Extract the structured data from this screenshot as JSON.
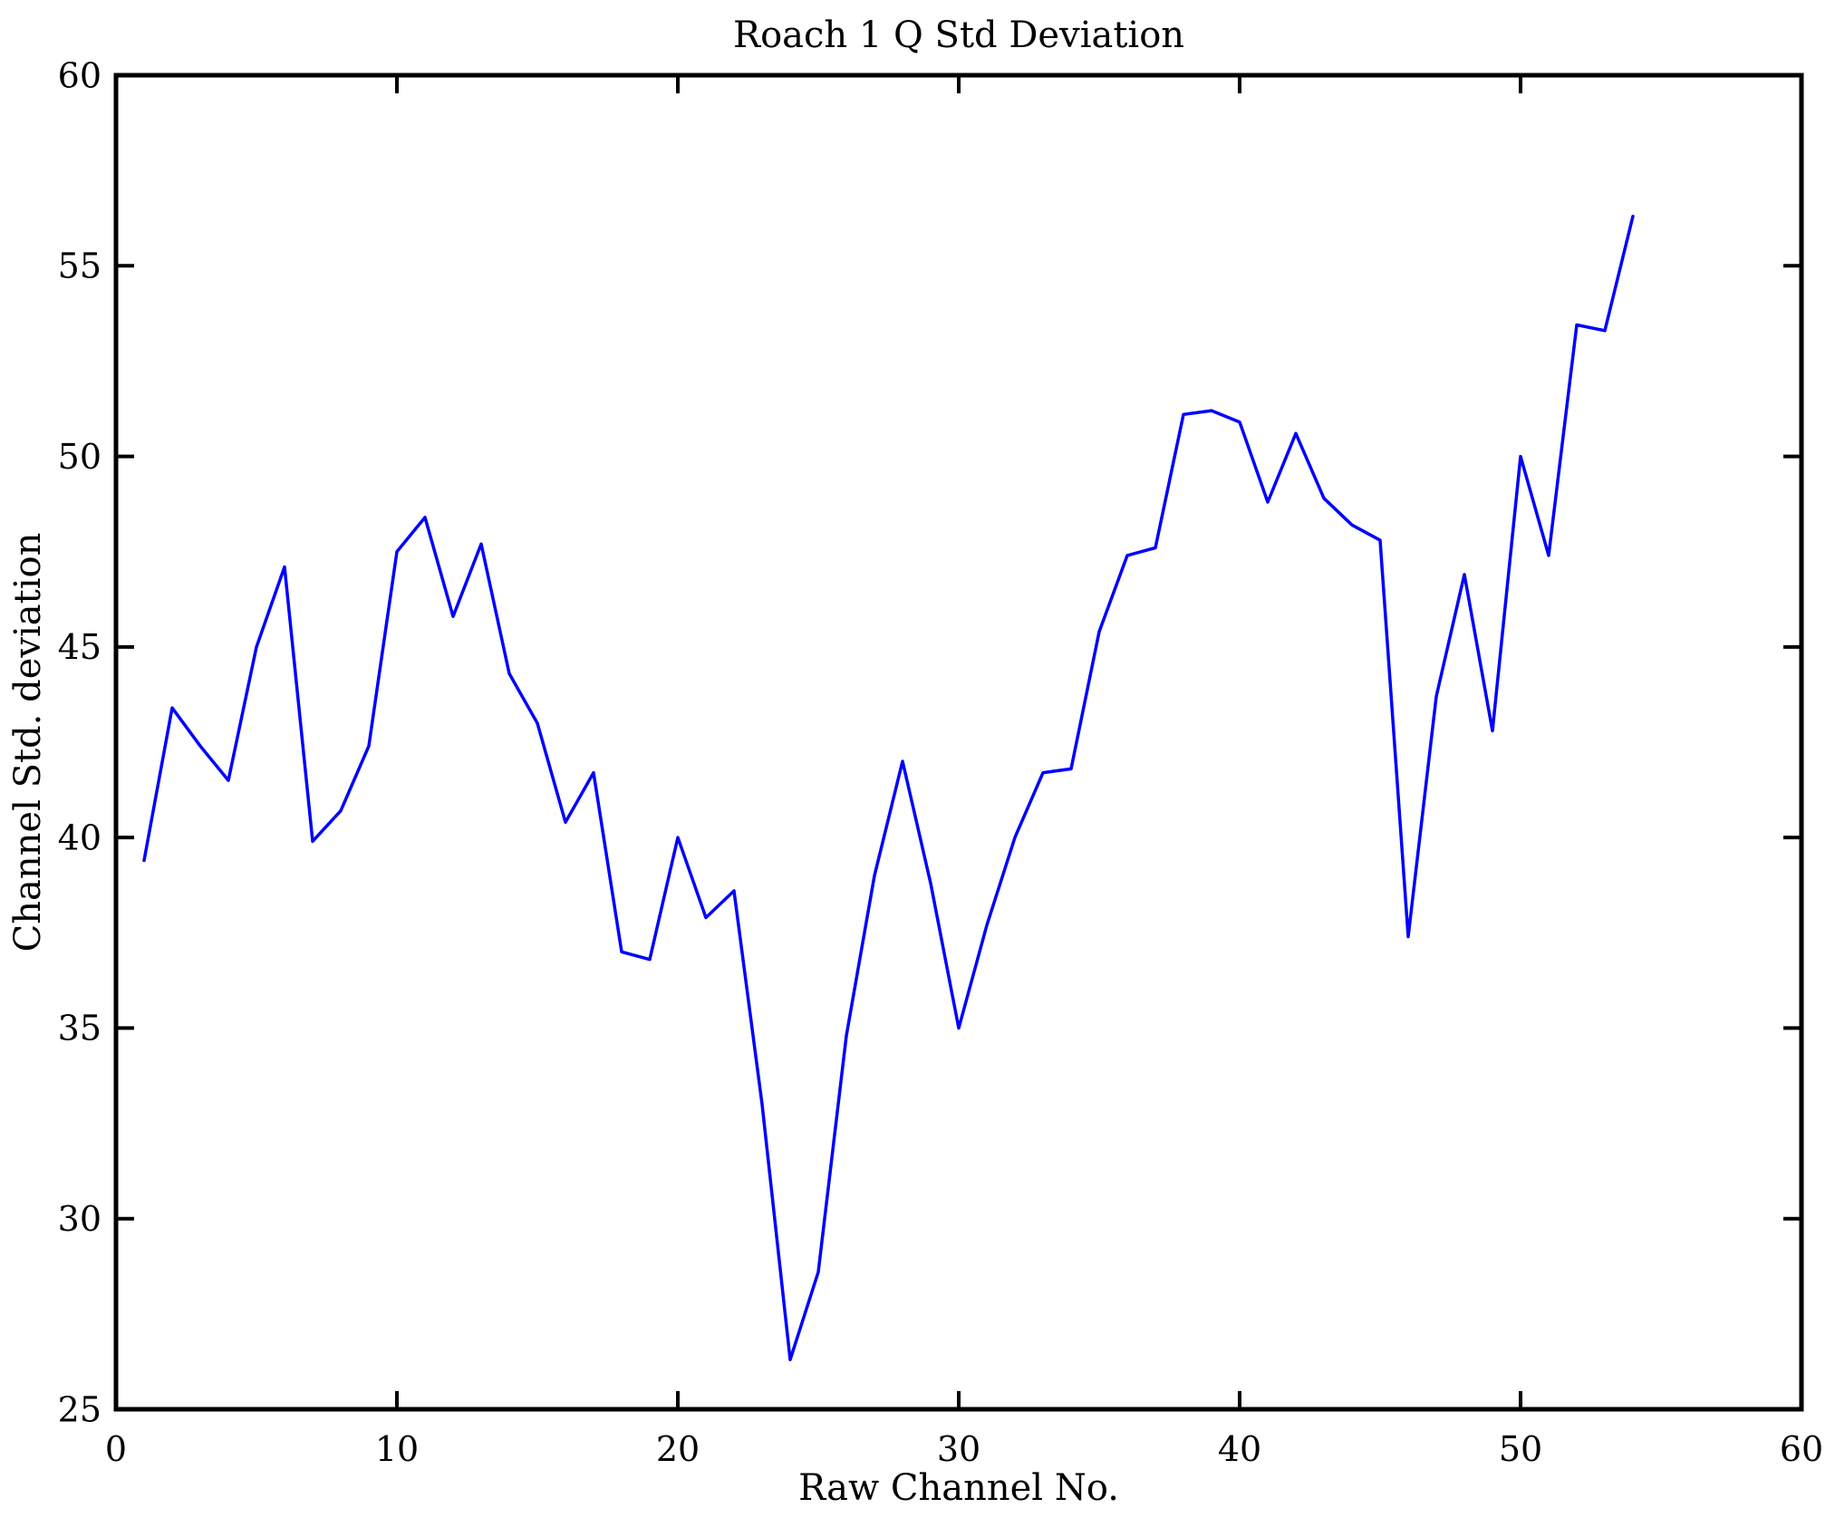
{
  "figure": {
    "background_color": "#ffffff",
    "axes_color": "#000000"
  },
  "chart_data": {
    "type": "line",
    "title": "Roach 1 Q Std Deviation",
    "xlabel": "Raw Channel No.",
    "ylabel": "Channel Std. deviation",
    "xlim": [
      0,
      60
    ],
    "ylim": [
      25,
      60
    ],
    "x_ticks": [
      0,
      10,
      20,
      30,
      40,
      50,
      60
    ],
    "y_ticks": [
      25,
      30,
      35,
      40,
      45,
      50,
      55,
      60
    ],
    "grid": false,
    "legend": "none",
    "box": true,
    "line_color": "#0000FF",
    "series_name": "Channel Std. deviation",
    "x": [
      1,
      2,
      3,
      4,
      5,
      6,
      7,
      8,
      9,
      10,
      11,
      12,
      13,
      14,
      15,
      16,
      17,
      18,
      19,
      20,
      21,
      22,
      23,
      24,
      25,
      26,
      27,
      28,
      29,
      30,
      31,
      32,
      33,
      34,
      35,
      36,
      37,
      38,
      39,
      40,
      41,
      42,
      43,
      44,
      45,
      46,
      47,
      48,
      49,
      50,
      51,
      52,
      53,
      54
    ],
    "values": [
      39.4,
      43.4,
      42.4,
      41.5,
      45.0,
      47.1,
      39.9,
      40.7,
      42.4,
      47.5,
      48.4,
      45.8,
      47.7,
      44.3,
      43.0,
      40.4,
      41.7,
      37.0,
      36.8,
      40.0,
      37.9,
      38.6,
      33.0,
      26.3,
      28.6,
      34.8,
      39.0,
      42.0,
      38.8,
      35.0,
      37.7,
      40.0,
      41.7,
      41.8,
      45.4,
      47.4,
      47.6,
      51.1,
      51.2,
      50.9,
      48.8,
      50.6,
      48.9,
      48.2,
      47.8,
      37.4,
      43.7,
      46.9,
      42.8,
      50.0,
      47.4,
      53.45,
      53.3,
      56.3
    ]
  }
}
